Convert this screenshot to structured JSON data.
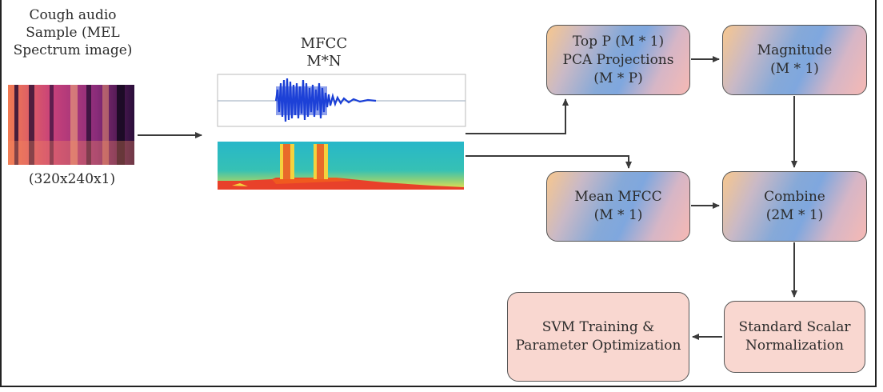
{
  "input": {
    "title_lines": [
      "Cough audio",
      "Sample (MEL",
      "Spectrum image)"
    ],
    "size": "(320x240x1)"
  },
  "mfcc": {
    "title_lines": [
      "MFCC",
      "M*N"
    ]
  },
  "boxes": {
    "pca": [
      "Top P (M * 1)",
      "PCA Projections",
      "(M * P)"
    ],
    "magnitude": [
      "Magnitude",
      "(M * 1)"
    ],
    "mean": [
      "Mean MFCC",
      "(M * 1)"
    ],
    "combine": [
      "Combine",
      "(2M * 1)"
    ],
    "normalization": [
      "Standard Scalar",
      "Normalization"
    ],
    "svm": [
      "SVM Training &",
      "Parameter Optimization"
    ]
  },
  "colors": {
    "arrow": "#3a3a3a",
    "box_border": "#555555",
    "pink_fill": "#f9d7d0"
  }
}
